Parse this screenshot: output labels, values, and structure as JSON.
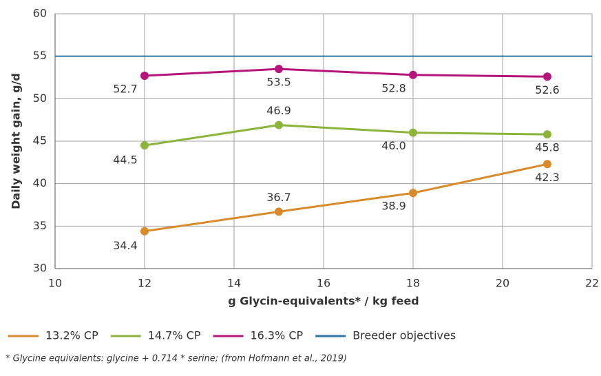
{
  "chart_data": {
    "type": "line",
    "x": [
      12,
      15,
      18,
      21
    ],
    "series": [
      {
        "name": "13.2% CP",
        "color": "#d98a2b",
        "values": [
          34.4,
          36.7,
          38.9,
          42.3
        ],
        "value_labels": [
          "34.4",
          "36.7",
          "38.9",
          "42.3"
        ]
      },
      {
        "name": "14.7% CP",
        "color": "#8cb43a",
        "values": [
          44.5,
          46.9,
          46.0,
          45.8
        ],
        "value_labels": [
          "44.5",
          "46.9",
          "46.0",
          "45.8"
        ]
      },
      {
        "name": "16.3% CP",
        "color": "#b5147a",
        "values": [
          52.7,
          53.5,
          52.8,
          52.6
        ],
        "value_labels": [
          "52.7",
          "53.5",
          "52.8",
          "52.6"
        ]
      }
    ],
    "reference_lines": [
      {
        "name": "Breeder objectives",
        "color": "#2e75a8",
        "value": 55
      }
    ],
    "xlim": [
      10,
      22
    ],
    "xticks": [
      10,
      12,
      14,
      16,
      18,
      20,
      22
    ],
    "ylim": [
      30,
      60
    ],
    "yticks": [
      30,
      35,
      40,
      45,
      50,
      55,
      60
    ],
    "grid": true,
    "xlabel": "g Glycin-equivalents* / kg feed",
    "ylabel": "Daily weight gain, g/d",
    "footnote": "* Glycine equivalents: glycine + 0.714 * serine; (from Hofmann et al., 2019)"
  }
}
